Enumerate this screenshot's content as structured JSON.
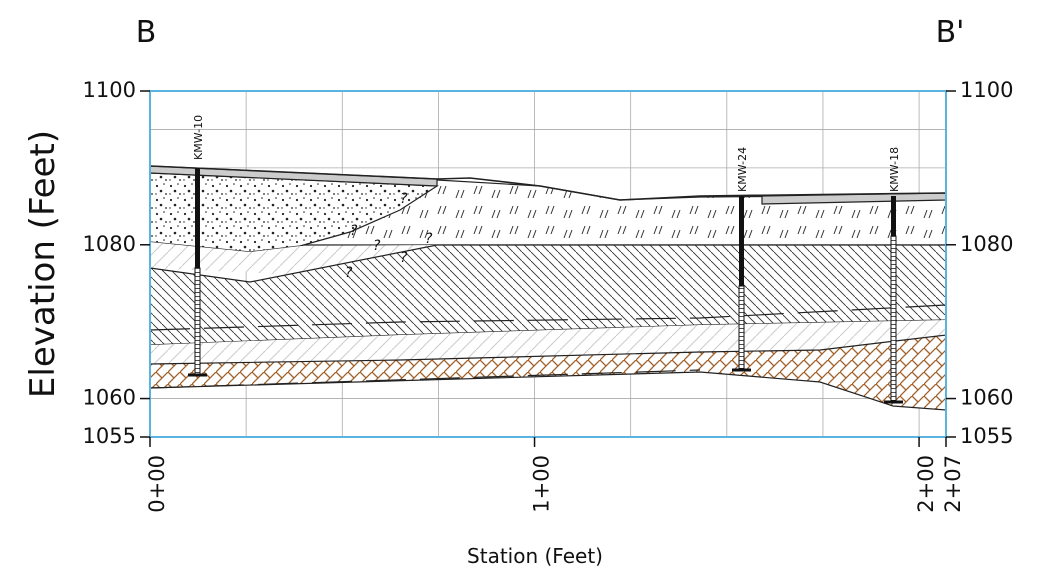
{
  "section": {
    "left_label": "B",
    "right_label": "B'",
    "y_axis_title": "Elevation (Feet)",
    "x_axis_title": "Station (Feet)",
    "ylim": [
      1055,
      1100
    ],
    "yticks": [
      1100,
      1080,
      1060,
      1055
    ],
    "xlim": [
      0,
      207
    ],
    "xticks": [
      {
        "value": 0,
        "label": "0+00"
      },
      {
        "value": 100,
        "label": "1+00"
      },
      {
        "value": 200,
        "label": "2+00"
      },
      {
        "value": 207,
        "label": "2+07"
      }
    ],
    "wells": [
      {
        "name": "KMW-10"
      },
      {
        "name": "KMW-24"
      },
      {
        "name": "KMW-18"
      }
    ],
    "uncertain_contacts": [
      "?",
      "?",
      "?",
      "?",
      "?",
      "?"
    ]
  }
}
